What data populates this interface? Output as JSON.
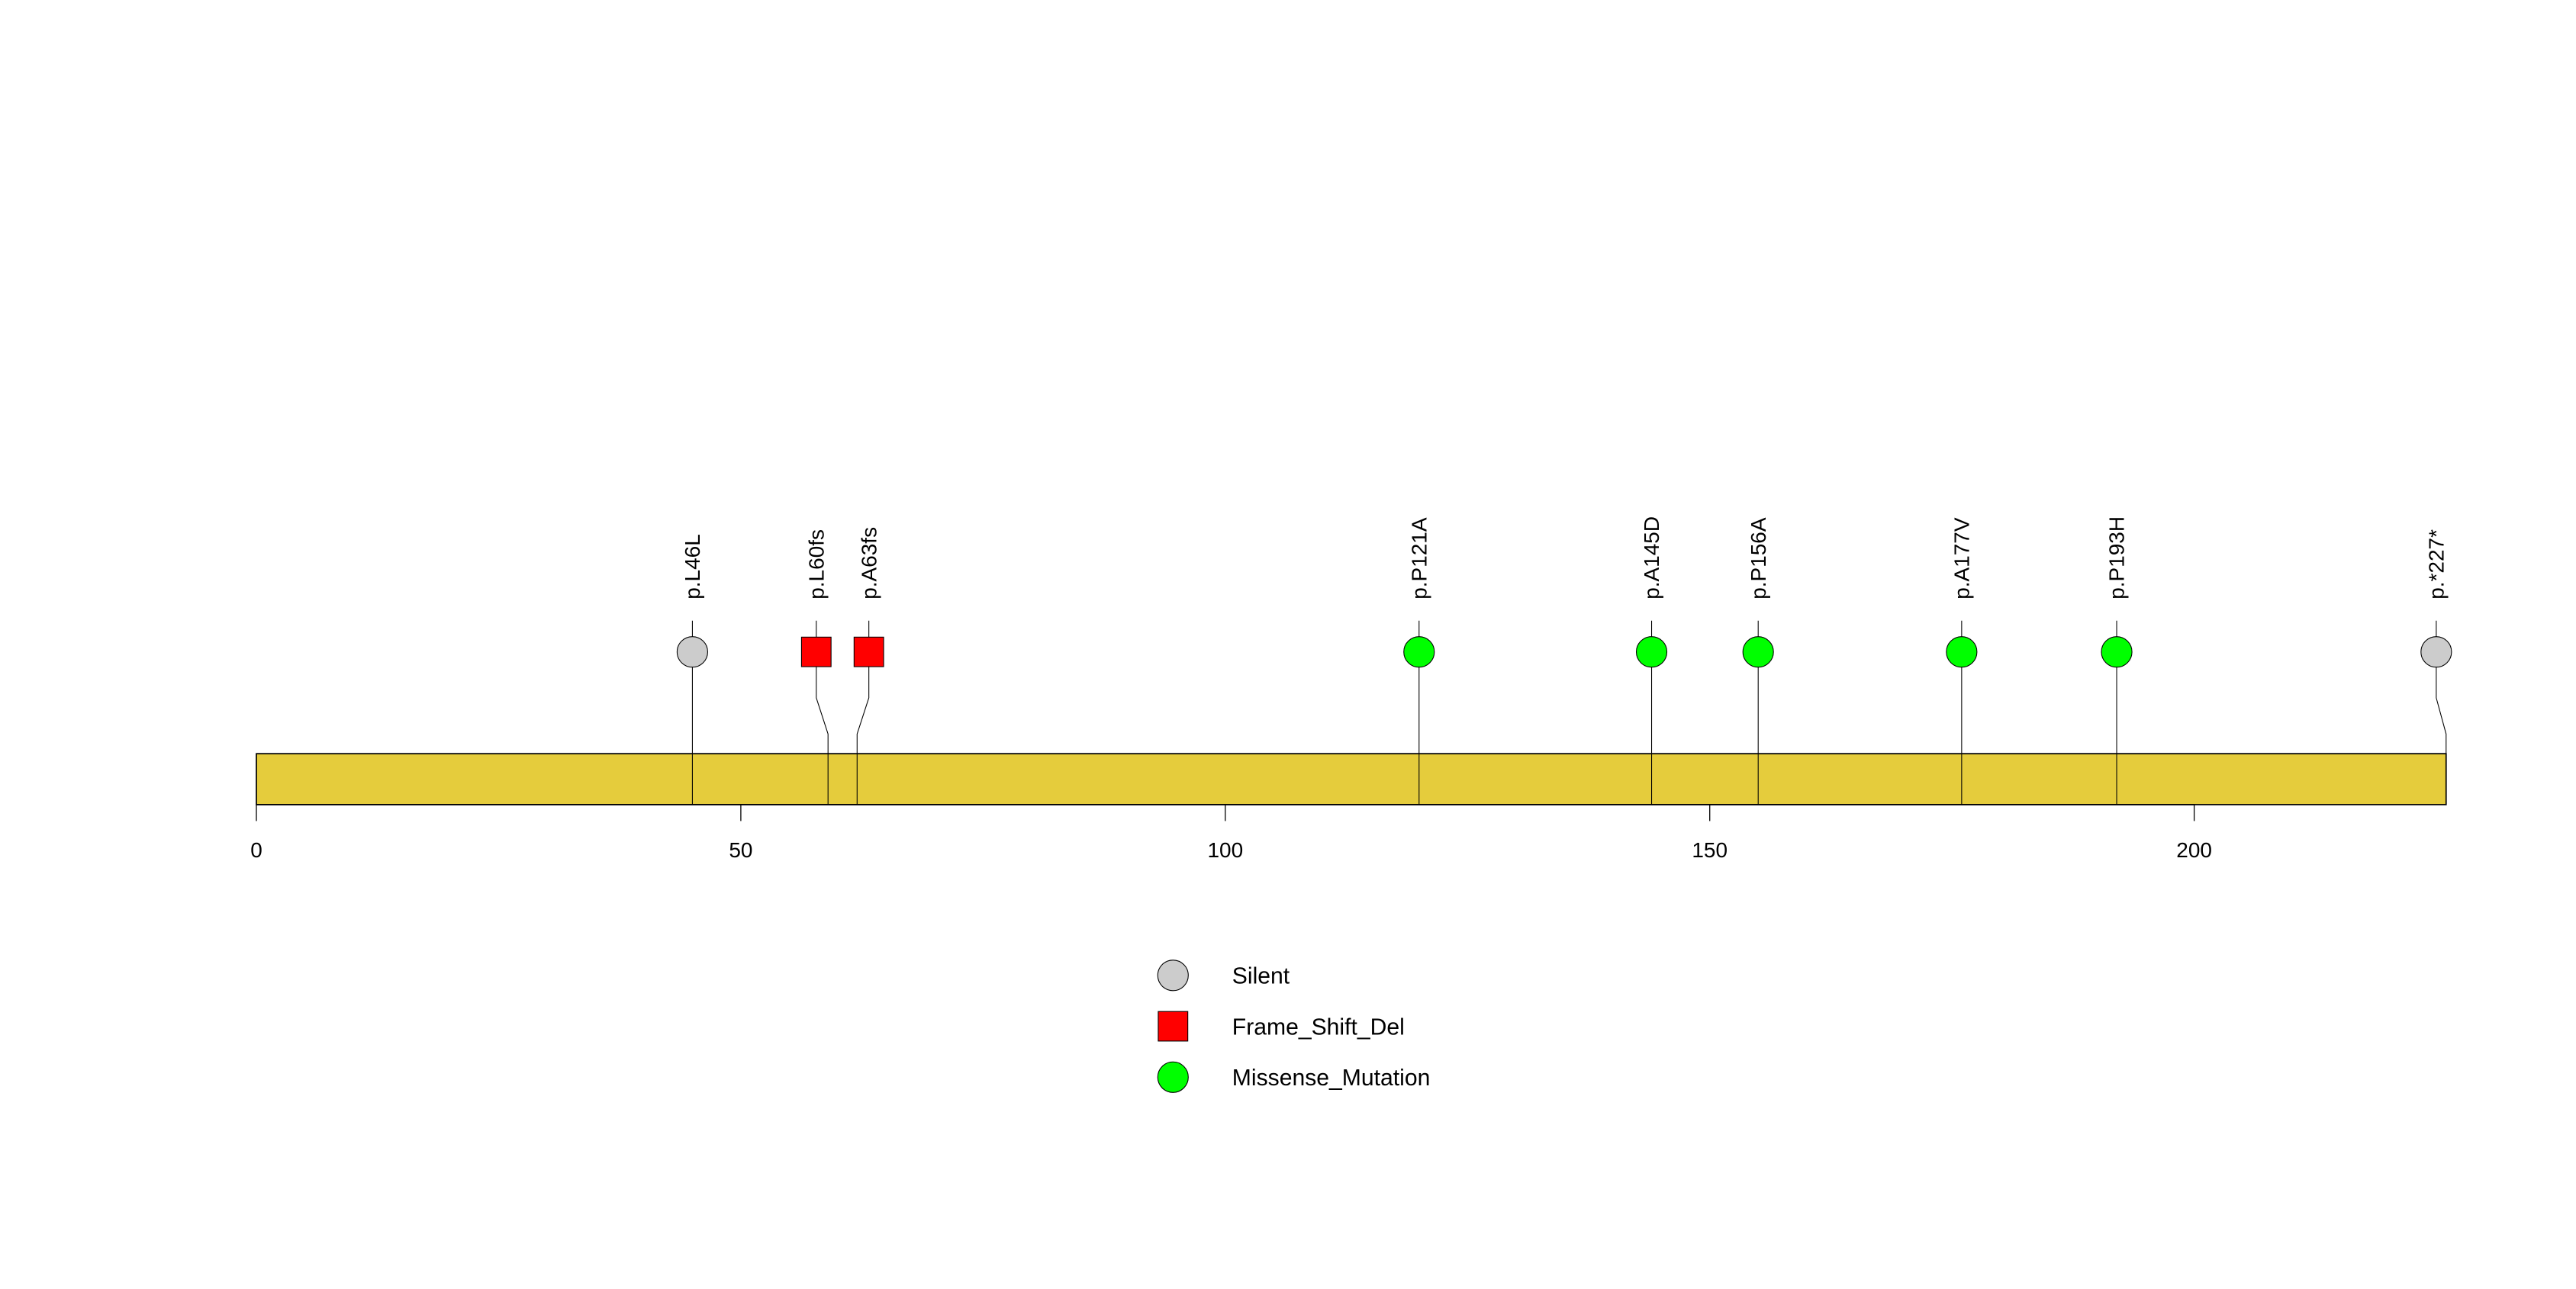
{
  "chart_data": {
    "type": "lollipop",
    "title": "",
    "protein_length": 226,
    "xlim": [
      0,
      226
    ],
    "x_ticks": [
      0,
      50,
      100,
      150,
      200
    ],
    "x_tick_labels": [
      "0",
      "50",
      "100",
      "150",
      "200"
    ],
    "domain_color": "#E5CC3C",
    "mutations": [
      {
        "label": "p.L46L",
        "position": 46,
        "type": "Silent"
      },
      {
        "label": "p.L60fs",
        "position": 60,
        "type": "Frame_Shift_Del"
      },
      {
        "label": "p.A63fs",
        "position": 63,
        "type": "Frame_Shift_Del"
      },
      {
        "label": "p.P121A",
        "position": 121,
        "type": "Missense_Mutation"
      },
      {
        "label": "p.A145D",
        "position": 145,
        "type": "Missense_Mutation"
      },
      {
        "label": "p.P156A",
        "position": 156,
        "type": "Missense_Mutation"
      },
      {
        "label": "p.A177V",
        "position": 177,
        "type": "Missense_Mutation"
      },
      {
        "label": "p.P193H",
        "position": 193,
        "type": "Missense_Mutation"
      },
      {
        "label": "p.*227*",
        "position": 227,
        "type": "Silent"
      }
    ],
    "legend": [
      {
        "label": "Silent",
        "shape": "circle",
        "color": "#CCCCCC"
      },
      {
        "label": "Frame_Shift_Del",
        "shape": "square",
        "color": "#FF0000"
      },
      {
        "label": "Missense_Mutation",
        "shape": "circle",
        "color": "#00FF00"
      }
    ],
    "legend_position": "bottom-center"
  }
}
